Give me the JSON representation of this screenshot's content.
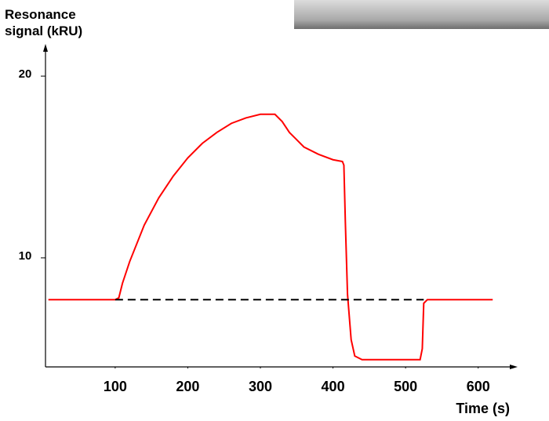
{
  "chart_data": {
    "type": "line",
    "y_label": "Resonance signal (kRU)",
    "x_label": "Time  (s)",
    "xlim": [
      4,
      650
    ],
    "ylim": [
      4,
      21.6
    ],
    "xticks": [
      100,
      200,
      300,
      400,
      500,
      600
    ],
    "yticks": [
      10,
      20
    ],
    "series": [
      {
        "color": "#ff0000",
        "dashed": false,
        "x": [
          8,
          100,
          105,
          110,
          120,
          140,
          160,
          180,
          200,
          220,
          240,
          260,
          280,
          300,
          320,
          330,
          340,
          350,
          360,
          380,
          400,
          413,
          415,
          417,
          420,
          425,
          430,
          440,
          520,
          523,
          525,
          530,
          620
        ],
        "values": [
          7.7,
          7.7,
          7.8,
          8.6,
          9.8,
          11.8,
          13.3,
          14.5,
          15.5,
          16.3,
          16.9,
          17.4,
          17.7,
          17.9,
          17.9,
          17.5,
          16.9,
          16.5,
          16.1,
          15.7,
          15.4,
          15.3,
          15.1,
          12,
          8,
          5.5,
          4.6,
          4.4,
          4.4,
          5,
          7.5,
          7.7,
          7.7
        ]
      },
      {
        "color": "#000000",
        "dashed": true,
        "x": [
          100,
          525
        ],
        "values": [
          7.7,
          7.7
        ]
      }
    ]
  }
}
